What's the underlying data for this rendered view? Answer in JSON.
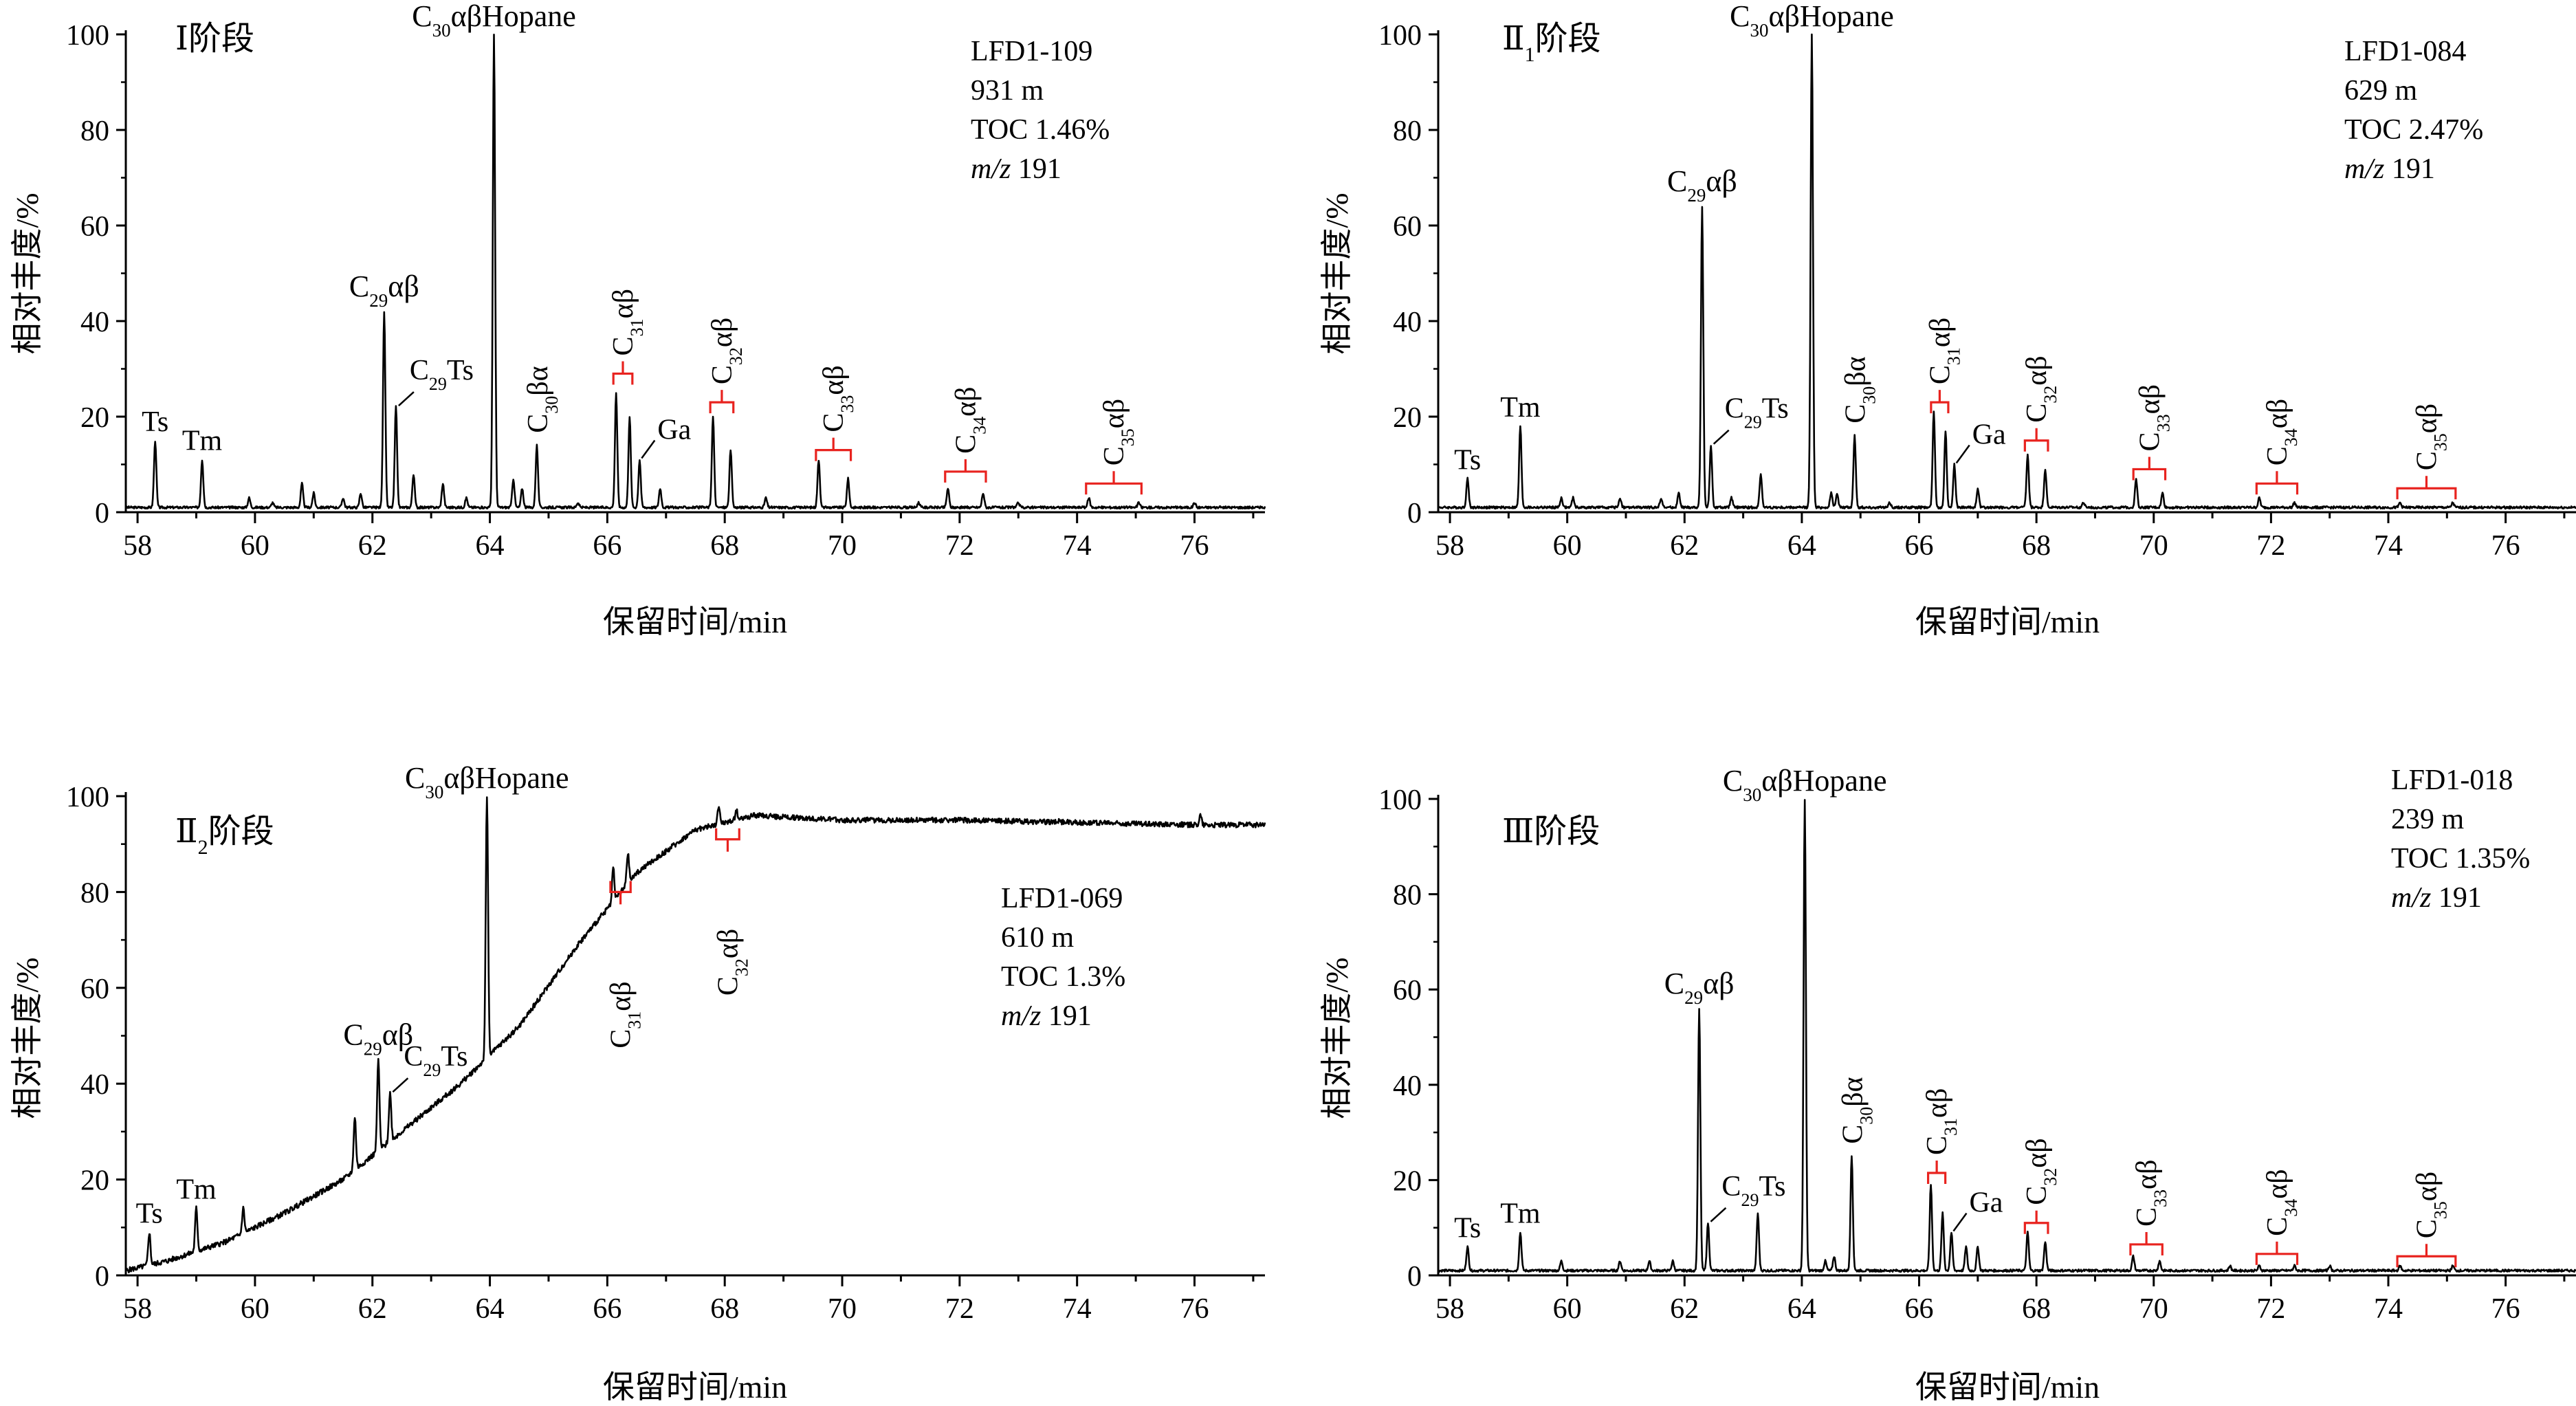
{
  "chart_data": [
    {
      "type": "line",
      "panel": "top-left",
      "stage_label": "Ⅰ阶段",
      "info_lines": [
        "LFD1-109",
        "931 m",
        "TOC 1.46%",
        "m/z 191"
      ],
      "xlabel": "保留时间/min",
      "ylabel": "相对丰度/%",
      "xlim": [
        57.8,
        77.2
      ],
      "ylim": [
        0,
        100
      ],
      "x_ticks": [
        "58",
        "60",
        "62",
        "64",
        "66",
        "68",
        "70",
        "72",
        "74",
        "76"
      ],
      "y_ticks": [
        "0",
        "20",
        "40",
        "60",
        "80",
        "100"
      ],
      "baseline": 1,
      "peaks": [
        {
          "x": 58.3,
          "y": 15,
          "label": "Ts"
        },
        {
          "x": 59.1,
          "y": 11,
          "label": "Tm"
        },
        {
          "x": 59.9,
          "y": 3
        },
        {
          "x": 60.3,
          "y": 2
        },
        {
          "x": 60.8,
          "y": 6
        },
        {
          "x": 61.0,
          "y": 4
        },
        {
          "x": 61.5,
          "y": 3
        },
        {
          "x": 61.8,
          "y": 4
        },
        {
          "x": 62.2,
          "y": 42,
          "label": "C29αβ"
        },
        {
          "x": 62.4,
          "y": 22,
          "label": "C29Ts"
        },
        {
          "x": 62.7,
          "y": 8
        },
        {
          "x": 63.2,
          "y": 6
        },
        {
          "x": 63.6,
          "y": 3
        },
        {
          "x": 64.07,
          "y": 100,
          "label": "C30αβHopane"
        },
        {
          "x": 64.4,
          "y": 7
        },
        {
          "x": 64.55,
          "y": 5
        },
        {
          "x": 64.8,
          "y": 14,
          "label": "C30βα"
        },
        {
          "x": 65.5,
          "y": 2
        },
        {
          "x": 66.15,
          "y": 25
        },
        {
          "x": 66.38,
          "y": 20
        },
        {
          "x": 66.55,
          "y": 11,
          "label": "Ga"
        },
        {
          "x": 66.9,
          "y": 5
        },
        {
          "x": 67.8,
          "y": 20
        },
        {
          "x": 68.1,
          "y": 13
        },
        {
          "x": 68.7,
          "y": 3
        },
        {
          "x": 69.6,
          "y": 11
        },
        {
          "x": 70.1,
          "y": 7
        },
        {
          "x": 71.3,
          "y": 2
        },
        {
          "x": 71.8,
          "y": 5
        },
        {
          "x": 72.4,
          "y": 4
        },
        {
          "x": 73.0,
          "y": 2
        },
        {
          "x": 74.2,
          "y": 3
        },
        {
          "x": 75.05,
          "y": 2
        },
        {
          "x": 76.0,
          "y": 2
        }
      ],
      "groups": [
        {
          "label": "C31αβ",
          "x1": 66.15,
          "x2": 66.38,
          "y": 29
        },
        {
          "label": "C32αβ",
          "x1": 67.8,
          "x2": 68.1,
          "y": 23
        },
        {
          "label": "C33αβ",
          "x1": 69.6,
          "x2": 70.1,
          "y": 13
        },
        {
          "label": "C34αβ",
          "x1": 71.8,
          "x2": 72.4,
          "y": 8.5
        },
        {
          "label": "C35αβ",
          "x1": 74.2,
          "x2": 75.05,
          "y": 6
        }
      ]
    },
    {
      "type": "line",
      "panel": "top-right",
      "stage_label": "Ⅱ1阶段",
      "info_lines": [
        "LFD1-084",
        "629 m",
        "TOC 2.47%",
        "m/z 191"
      ],
      "xlabel": "保留时间/min",
      "ylabel": "相对丰度/%",
      "xlim": [
        57.8,
        77.2
      ],
      "ylim": [
        0,
        100
      ],
      "x_ticks": [
        "58",
        "60",
        "62",
        "64",
        "66",
        "68",
        "70",
        "72",
        "74",
        "76"
      ],
      "y_ticks": [
        "0",
        "20",
        "40",
        "60",
        "80",
        "100"
      ],
      "baseline": 1,
      "peaks": [
        {
          "x": 58.3,
          "y": 7,
          "label": "Ts"
        },
        {
          "x": 59.2,
          "y": 18,
          "label": "Tm"
        },
        {
          "x": 59.9,
          "y": 3
        },
        {
          "x": 60.1,
          "y": 3
        },
        {
          "x": 60.9,
          "y": 3
        },
        {
          "x": 61.6,
          "y": 3
        },
        {
          "x": 61.9,
          "y": 4
        },
        {
          "x": 62.3,
          "y": 64,
          "label": "C29αβ"
        },
        {
          "x": 62.45,
          "y": 14,
          "label": "C29Ts"
        },
        {
          "x": 62.8,
          "y": 3
        },
        {
          "x": 63.3,
          "y": 8
        },
        {
          "x": 64.17,
          "y": 100,
          "label": "C30αβHopane"
        },
        {
          "x": 64.5,
          "y": 4
        },
        {
          "x": 64.6,
          "y": 4
        },
        {
          "x": 64.9,
          "y": 16,
          "label": "C30βα"
        },
        {
          "x": 65.5,
          "y": 2
        },
        {
          "x": 66.25,
          "y": 21
        },
        {
          "x": 66.45,
          "y": 17
        },
        {
          "x": 66.6,
          "y": 10,
          "label": "Ga"
        },
        {
          "x": 67.0,
          "y": 5
        },
        {
          "x": 67.85,
          "y": 12
        },
        {
          "x": 68.15,
          "y": 9
        },
        {
          "x": 68.8,
          "y": 2
        },
        {
          "x": 69.7,
          "y": 7
        },
        {
          "x": 70.15,
          "y": 4
        },
        {
          "x": 71.8,
          "y": 3
        },
        {
          "x": 72.4,
          "y": 2
        },
        {
          "x": 74.2,
          "y": 2
        },
        {
          "x": 75.1,
          "y": 2
        }
      ],
      "groups": [
        {
          "label": "C31αβ",
          "x1": 66.25,
          "x2": 66.45,
          "y": 23
        },
        {
          "label": "C32αβ",
          "x1": 67.85,
          "x2": 68.15,
          "y": 15
        },
        {
          "label": "C33αβ",
          "x1": 69.7,
          "x2": 70.15,
          "y": 9
        },
        {
          "label": "C34αβ",
          "x1": 71.8,
          "x2": 72.4,
          "y": 6
        },
        {
          "label": "C35αβ",
          "x1": 74.2,
          "x2": 75.1,
          "y": 5
        }
      ]
    },
    {
      "type": "line",
      "panel": "bottom-left",
      "stage_label": "Ⅱ2阶段",
      "info_lines": [
        "LFD1-069",
        "610 m",
        "TOC 1.3%",
        "m/z  191"
      ],
      "xlabel": "保留时间/min",
      "ylabel": "相对丰度/%",
      "xlim": [
        57.8,
        77.2
      ],
      "ylim": [
        0,
        100
      ],
      "x_ticks": [
        "58",
        "60",
        "62",
        "64",
        "66",
        "68",
        "70",
        "72",
        "74",
        "76"
      ],
      "y_ticks": [
        "0",
        "20",
        "40",
        "60",
        "80",
        "100"
      ],
      "baseline_curve": [
        [
          57.8,
          1
        ],
        [
          58.5,
          3
        ],
        [
          59.5,
          7
        ],
        [
          60.5,
          13
        ],
        [
          61.5,
          20
        ],
        [
          62.5,
          30
        ],
        [
          63.5,
          40
        ],
        [
          64.5,
          52
        ],
        [
          65.5,
          69
        ],
        [
          66.5,
          84
        ],
        [
          67.5,
          93
        ],
        [
          68.5,
          96
        ],
        [
          70,
          95
        ],
        [
          72,
          95
        ],
        [
          74,
          94.5
        ],
        [
          76,
          94
        ],
        [
          77.2,
          94
        ]
      ],
      "peaks": [
        {
          "x": 58.2,
          "y": 9,
          "label": "Ts"
        },
        {
          "x": 59.0,
          "y": 14,
          "label": "Tm"
        },
        {
          "x": 59.8,
          "y": 14
        },
        {
          "x": 61.7,
          "y": 33
        },
        {
          "x": 62.1,
          "y": 45,
          "label": "C29αβ"
        },
        {
          "x": 62.3,
          "y": 38,
          "label": "C29Ts"
        },
        {
          "x": 63.95,
          "y": 100,
          "label": "C30αβHopane"
        },
        {
          "x": 66.1,
          "y": 85
        },
        {
          "x": 66.35,
          "y": 88
        },
        {
          "x": 67.9,
          "y": 98
        },
        {
          "x": 68.2,
          "y": 97
        },
        {
          "x": 73.7,
          "y": 95
        },
        {
          "x": 76.1,
          "y": 96
        }
      ],
      "groups": [
        {
          "label": "C31αβ",
          "x1": 66.1,
          "x2": 66.35,
          "y": 80,
          "below": true
        },
        {
          "label": "C32αβ",
          "x1": 67.9,
          "x2": 68.2,
          "y": 91,
          "below": true
        }
      ]
    },
    {
      "type": "line",
      "panel": "bottom-right",
      "stage_label": "Ⅲ阶段",
      "info_lines": [
        "LFD1-018",
        "239 m",
        "TOC 1.35%",
        "m/z 191"
      ],
      "xlabel": "保留时间/min",
      "ylabel": "相对丰度/%",
      "xlim": [
        57.8,
        77.2
      ],
      "ylim": [
        0,
        100
      ],
      "x_ticks": [
        "58",
        "60",
        "62",
        "64",
        "66",
        "68",
        "70",
        "72",
        "74",
        "76"
      ],
      "y_ticks": [
        "0",
        "20",
        "40",
        "60",
        "80",
        "100"
      ],
      "baseline": 1,
      "peaks": [
        {
          "x": 58.3,
          "y": 6,
          "label": "Ts"
        },
        {
          "x": 59.2,
          "y": 9,
          "label": "Tm"
        },
        {
          "x": 59.9,
          "y": 3
        },
        {
          "x": 60.9,
          "y": 3
        },
        {
          "x": 61.4,
          "y": 3
        },
        {
          "x": 61.8,
          "y": 3
        },
        {
          "x": 62.25,
          "y": 56,
          "label": "C29αβ"
        },
        {
          "x": 62.4,
          "y": 11,
          "label": "C29Ts"
        },
        {
          "x": 63.25,
          "y": 13
        },
        {
          "x": 64.05,
          "y": 100,
          "label": "C30αβHopane"
        },
        {
          "x": 64.4,
          "y": 3
        },
        {
          "x": 64.55,
          "y": 4
        },
        {
          "x": 64.85,
          "y": 25,
          "label": "C30βα"
        },
        {
          "x": 66.2,
          "y": 19
        },
        {
          "x": 66.4,
          "y": 13
        },
        {
          "x": 66.55,
          "y": 9,
          "label": "Ga"
        },
        {
          "x": 66.8,
          "y": 6
        },
        {
          "x": 67.0,
          "y": 6
        },
        {
          "x": 67.85,
          "y": 9
        },
        {
          "x": 68.15,
          "y": 7
        },
        {
          "x": 69.65,
          "y": 4
        },
        {
          "x": 70.1,
          "y": 3
        },
        {
          "x": 71.3,
          "y": 2
        },
        {
          "x": 71.8,
          "y": 2
        },
        {
          "x": 72.4,
          "y": 2
        },
        {
          "x": 73.0,
          "y": 2
        },
        {
          "x": 74.2,
          "y": 2
        },
        {
          "x": 75.1,
          "y": 2
        }
      ],
      "groups": [
        {
          "label": "C31αβ",
          "x1": 66.2,
          "x2": 66.4,
          "y": 21.5
        },
        {
          "label": "C32αβ",
          "x1": 67.85,
          "x2": 68.15,
          "y": 11
        },
        {
          "label": "C33αβ",
          "x1": 69.65,
          "x2": 70.1,
          "y": 6.5
        },
        {
          "label": "C34αβ",
          "x1": 71.8,
          "x2": 72.4,
          "y": 4.5
        },
        {
          "label": "C35αβ",
          "x1": 74.2,
          "x2": 75.1,
          "y": 4
        }
      ]
    }
  ],
  "colors": {
    "trace": "#000000",
    "bracket": "#e8231f"
  }
}
